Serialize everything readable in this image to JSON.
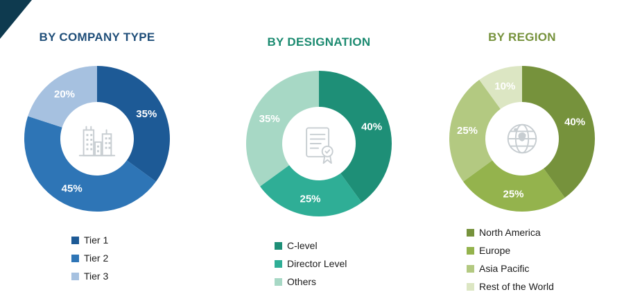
{
  "decorations": {
    "corner_triangle_color": "#0e3a4f"
  },
  "icon_stroke_color": "#c7cdd1",
  "chart_data": [
    {
      "type": "pie",
      "donut": true,
      "title": "BY COMPANY TYPE",
      "title_color": "#1f4e79",
      "center_icon": "city-buildings-icon",
      "categories": [
        "Tier 1",
        "Tier 2",
        "Tier 3"
      ],
      "values": [
        35,
        45,
        20
      ],
      "value_labels": [
        "35%",
        "45%",
        "20%"
      ],
      "colors": [
        "#1d5a96",
        "#2e75b6",
        "#a6c1e0"
      ],
      "start_angle": 0,
      "legend_position": "bottom"
    },
    {
      "type": "pie",
      "donut": true,
      "title": "BY DESIGNATION",
      "title_color": "#1b8a70",
      "center_icon": "certificate-icon",
      "categories": [
        "C-level",
        "Director Level",
        "Others"
      ],
      "values": [
        40,
        25,
        35
      ],
      "value_labels": [
        "40%",
        "25%",
        "35%"
      ],
      "colors": [
        "#1e8f77",
        "#2fae96",
        "#a7d8c5"
      ],
      "start_angle": 0,
      "legend_position": "bottom"
    },
    {
      "type": "pie",
      "donut": true,
      "title": "BY REGION",
      "title_color": "#76923c",
      "center_icon": "globe-icon",
      "categories": [
        "North America",
        "Europe",
        "Asia Pacific",
        "Rest of the World"
      ],
      "values": [
        40,
        25,
        25,
        10
      ],
      "value_labels": [
        "40%",
        "25%",
        "25%",
        "10%"
      ],
      "colors": [
        "#76923c",
        "#94b34d",
        "#b3c981",
        "#dce6c3"
      ],
      "start_angle": 0,
      "legend_position": "bottom"
    }
  ]
}
